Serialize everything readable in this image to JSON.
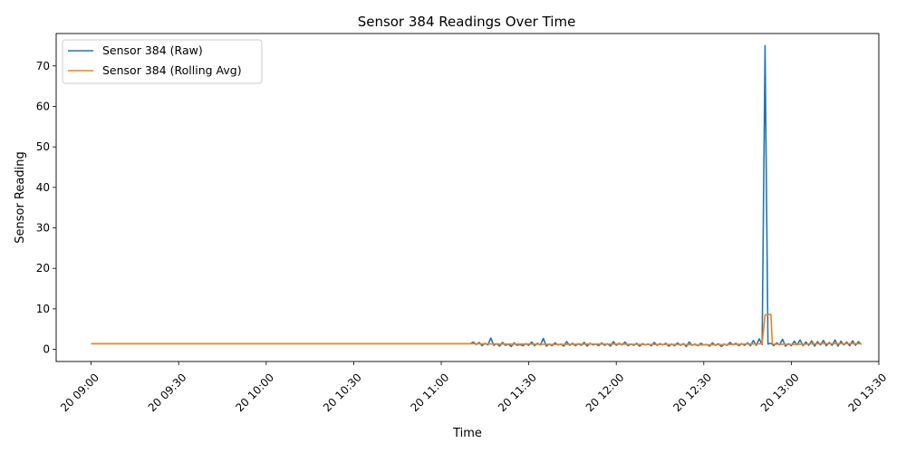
{
  "chart_data": {
    "type": "line",
    "title": "Sensor 384 Readings Over Time",
    "xlabel": "Time",
    "ylabel": "Sensor Reading",
    "xlim": [
      "20 08:48",
      "20 13:30"
    ],
    "ylim": [
      -3,
      78
    ],
    "x_ticks": [
      {
        "t": "20 09:00",
        "label": "20 09:00"
      },
      {
        "t": "20 09:30",
        "label": "20 09:30"
      },
      {
        "t": "20 10:00",
        "label": "20 10:00"
      },
      {
        "t": "20 10:30",
        "label": "20 10:30"
      },
      {
        "t": "20 11:00",
        "label": "20 11:00"
      },
      {
        "t": "20 11:30",
        "label": "20 11:30"
      },
      {
        "t": "20 12:00",
        "label": "20 12:00"
      },
      {
        "t": "20 12:30",
        "label": "20 12:30"
      },
      {
        "t": "20 13:00",
        "label": "20 13:00"
      },
      {
        "t": "20 13:30",
        "label": "20 13:30"
      }
    ],
    "y_ticks": [
      0,
      10,
      20,
      30,
      40,
      50,
      60,
      70
    ],
    "grid": false,
    "legend_position": "top-left",
    "series": [
      {
        "name": "Sensor 384 (Raw)",
        "color": "#1f77b4",
        "points": [
          [
            "20 09:00",
            1.4
          ],
          [
            "20 11:10",
            1.4
          ],
          [
            "20 11:11",
            1.8
          ],
          [
            "20 11:12",
            1.2
          ],
          [
            "20 11:13",
            1.7
          ],
          [
            "20 11:14",
            0.9
          ],
          [
            "20 11:15",
            1.5
          ],
          [
            "20 11:16",
            1.1
          ],
          [
            "20 11:17",
            2.8
          ],
          [
            "20 11:18",
            1.0
          ],
          [
            "20 11:19",
            1.4
          ],
          [
            "20 11:20",
            0.8
          ],
          [
            "20 11:21",
            1.7
          ],
          [
            "20 11:22",
            1.0
          ],
          [
            "20 11:23",
            1.3
          ],
          [
            "20 11:24",
            0.7
          ],
          [
            "20 11:25",
            1.6
          ],
          [
            "20 11:26",
            1.0
          ],
          [
            "20 11:27",
            1.2
          ],
          [
            "20 11:28",
            0.9
          ],
          [
            "20 11:29",
            1.4
          ],
          [
            "20 11:30",
            1.0
          ],
          [
            "20 11:31",
            1.8
          ],
          [
            "20 11:32",
            0.9
          ],
          [
            "20 11:33",
            1.5
          ],
          [
            "20 11:34",
            1.1
          ],
          [
            "20 11:35",
            2.7
          ],
          [
            "20 11:36",
            0.8
          ],
          [
            "20 11:37",
            1.3
          ],
          [
            "20 11:38",
            0.9
          ],
          [
            "20 11:39",
            1.6
          ],
          [
            "20 11:40",
            1.1
          ],
          [
            "20 11:41",
            1.3
          ],
          [
            "20 11:42",
            0.8
          ],
          [
            "20 11:43",
            1.9
          ],
          [
            "20 11:44",
            1.0
          ],
          [
            "20 11:45",
            1.5
          ],
          [
            "20 11:46",
            0.9
          ],
          [
            "20 11:47",
            1.4
          ],
          [
            "20 11:48",
            1.0
          ],
          [
            "20 11:49",
            1.7
          ],
          [
            "20 11:50",
            0.8
          ],
          [
            "20 11:51",
            1.5
          ],
          [
            "20 11:52",
            1.1
          ],
          [
            "20 11:53",
            1.3
          ],
          [
            "20 11:54",
            0.9
          ],
          [
            "20 11:55",
            1.6
          ],
          [
            "20 11:56",
            1.0
          ],
          [
            "20 11:57",
            1.4
          ],
          [
            "20 11:58",
            0.8
          ],
          [
            "20 11:59",
            1.9
          ],
          [
            "20 12:00",
            1.0
          ],
          [
            "20 12:01",
            1.5
          ],
          [
            "20 12:02",
            1.1
          ],
          [
            "20 12:03",
            1.8
          ],
          [
            "20 12:04",
            0.9
          ],
          [
            "20 12:05",
            1.3
          ],
          [
            "20 12:06",
            1.0
          ],
          [
            "20 12:07",
            1.5
          ],
          [
            "20 12:08",
            0.8
          ],
          [
            "20 12:09",
            1.4
          ],
          [
            "20 12:10",
            1.1
          ],
          [
            "20 12:11",
            1.3
          ],
          [
            "20 12:12",
            0.9
          ],
          [
            "20 12:13",
            1.7
          ],
          [
            "20 12:14",
            1.0
          ],
          [
            "20 12:15",
            1.4
          ],
          [
            "20 12:16",
            1.1
          ],
          [
            "20 12:17",
            1.5
          ],
          [
            "20 12:18",
            0.8
          ],
          [
            "20 12:19",
            1.3
          ],
          [
            "20 12:20",
            0.9
          ],
          [
            "20 12:21",
            1.6
          ],
          [
            "20 12:22",
            1.0
          ],
          [
            "20 12:23",
            1.4
          ],
          [
            "20 12:24",
            0.7
          ],
          [
            "20 12:25",
            1.8
          ],
          [
            "20 12:26",
            1.0
          ],
          [
            "20 12:27",
            1.3
          ],
          [
            "20 12:28",
            0.9
          ],
          [
            "20 12:29",
            1.5
          ],
          [
            "20 12:30",
            1.1
          ],
          [
            "20 12:31",
            1.2
          ],
          [
            "20 12:32",
            0.8
          ],
          [
            "20 12:33",
            1.6
          ],
          [
            "20 12:34",
            1.0
          ],
          [
            "20 12:35",
            1.4
          ],
          [
            "20 12:36",
            0.7
          ],
          [
            "20 12:37",
            1.3
          ],
          [
            "20 12:38",
            1.0
          ],
          [
            "20 12:39",
            1.7
          ],
          [
            "20 12:40",
            1.1
          ],
          [
            "20 12:41",
            1.5
          ],
          [
            "20 12:42",
            0.9
          ],
          [
            "20 12:43",
            1.4
          ],
          [
            "20 12:44",
            1.0
          ],
          [
            "20 12:45",
            1.6
          ],
          [
            "20 12:46",
            0.9
          ],
          [
            "20 12:47",
            2.2
          ],
          [
            "20 12:48",
            1.0
          ],
          [
            "20 12:49",
            2.6
          ],
          [
            "20 12:50",
            1.2
          ],
          [
            "20 12:51",
            75.0
          ],
          [
            "20 12:52",
            1.3
          ],
          [
            "20 12:53",
            1.5
          ],
          [
            "20 12:54",
            0.9
          ],
          [
            "20 12:55",
            1.6
          ],
          [
            "20 12:56",
            1.1
          ],
          [
            "20 12:57",
            2.5
          ],
          [
            "20 12:58",
            0.8
          ],
          [
            "20 12:59",
            1.4
          ],
          [
            "20 13:00",
            0.9
          ],
          [
            "20 13:01",
            2.0
          ],
          [
            "20 13:02",
            1.1
          ],
          [
            "20 13:03",
            2.3
          ],
          [
            "20 13:04",
            0.9
          ],
          [
            "20 13:05",
            1.8
          ],
          [
            "20 13:06",
            1.0
          ],
          [
            "20 13:07",
            2.1
          ],
          [
            "20 13:08",
            0.8
          ],
          [
            "20 13:09",
            1.9
          ],
          [
            "20 13:10",
            1.1
          ],
          [
            "20 13:11",
            2.2
          ],
          [
            "20 13:12",
            0.9
          ],
          [
            "20 13:13",
            1.7
          ],
          [
            "20 13:14",
            1.0
          ],
          [
            "20 13:15",
            2.3
          ],
          [
            "20 13:16",
            0.8
          ],
          [
            "20 13:17",
            2.0
          ],
          [
            "20 13:18",
            1.1
          ],
          [
            "20 13:19",
            1.8
          ],
          [
            "20 13:20",
            0.9
          ],
          [
            "20 13:21",
            2.1
          ],
          [
            "20 13:22",
            1.0
          ],
          [
            "20 13:23",
            1.9
          ],
          [
            "20 13:24",
            1.2
          ]
        ]
      },
      {
        "name": "Sensor 384 (Rolling Avg)",
        "color": "#ff7f0e",
        "points": [
          [
            "20 09:00",
            1.4
          ],
          [
            "20 11:10",
            1.4
          ],
          [
            "20 11:20",
            1.3
          ],
          [
            "20 11:30",
            1.3
          ],
          [
            "20 11:40",
            1.2
          ],
          [
            "20 11:50",
            1.3
          ],
          [
            "20 12:00",
            1.3
          ],
          [
            "20 12:10",
            1.2
          ],
          [
            "20 12:20",
            1.2
          ],
          [
            "20 12:30",
            1.1
          ],
          [
            "20 12:40",
            1.2
          ],
          [
            "20 12:50",
            1.4
          ],
          [
            "20 12:51",
            8.5
          ],
          [
            "20 12:52",
            8.6
          ],
          [
            "20 12:53",
            8.6
          ],
          [
            "20 12:53.5",
            1.3
          ],
          [
            "20 13:00",
            1.2
          ],
          [
            "20 13:10",
            1.4
          ],
          [
            "20 13:20",
            1.4
          ],
          [
            "20 13:24",
            1.4
          ]
        ]
      }
    ]
  }
}
